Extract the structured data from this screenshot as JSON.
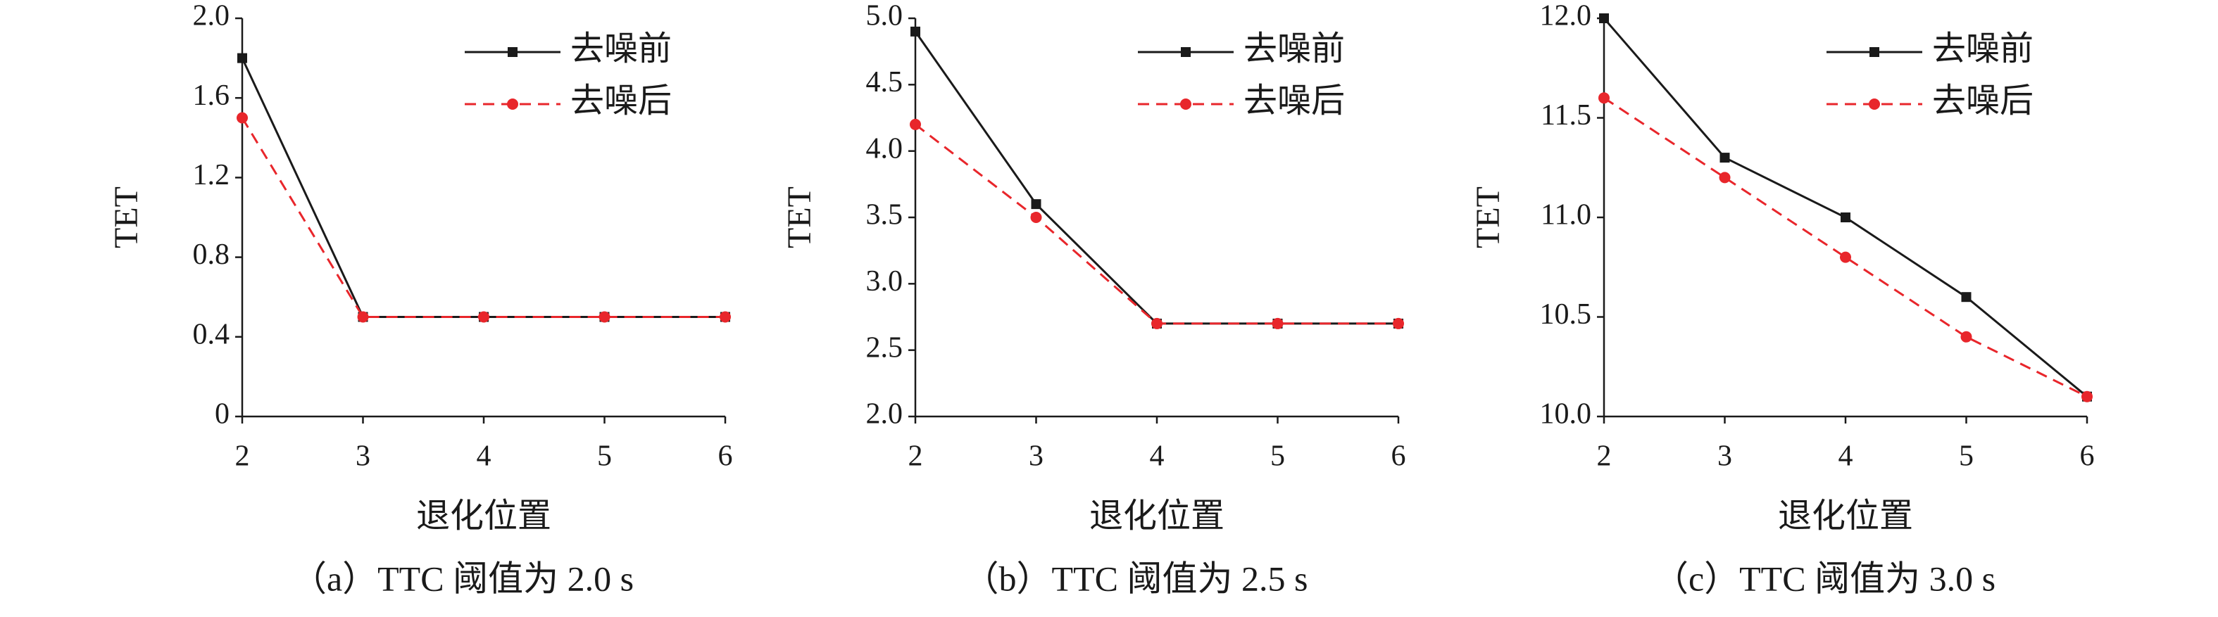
{
  "chart_data": [
    {
      "type": "line",
      "caption": "（a）TTC 阈值为 2.0 s",
      "xlabel": "退化位置",
      "ylabel": "TET",
      "x": [
        2,
        3,
        4,
        5,
        6
      ],
      "xlim": [
        2,
        6
      ],
      "xticks": [
        2,
        3,
        4,
        5,
        6
      ],
      "ylim": [
        0,
        2
      ],
      "yticks": [
        0,
        0.4,
        0.8,
        1.2,
        1.6,
        {
          "value": 2,
          "label": "2.0"
        }
      ],
      "series": [
        {
          "name": "去噪前",
          "color": "#1a1a1a",
          "values": [
            1.8,
            0.5,
            0.5,
            0.5,
            0.5
          ]
        },
        {
          "name": "去噪后",
          "color": "#e8262b",
          "values": [
            1.5,
            0.5,
            0.5,
            0.5,
            0.5
          ]
        }
      ]
    },
    {
      "type": "line",
      "caption": "（b）TTC 阈值为 2.5 s",
      "xlabel": "退化位置",
      "ylabel": "TET",
      "x": [
        2,
        3,
        4,
        5,
        6
      ],
      "xlim": [
        2,
        6
      ],
      "xticks": [
        2,
        3,
        4,
        5,
        6
      ],
      "ylim": [
        2,
        5
      ],
      "yticks": [
        {
          "value": 2,
          "label": "2.0"
        },
        2.5,
        {
          "value": 3,
          "label": "3.0"
        },
        3.5,
        {
          "value": 4,
          "label": "4.0"
        },
        4.5,
        {
          "value": 5,
          "label": "5.0"
        }
      ],
      "series": [
        {
          "name": "去噪前",
          "color": "#1a1a1a",
          "values": [
            4.9,
            3.6,
            2.7,
            2.7,
            2.7
          ]
        },
        {
          "name": "去噪后",
          "color": "#e8262b",
          "values": [
            4.2,
            3.5,
            2.7,
            2.7,
            2.7
          ]
        }
      ]
    },
    {
      "type": "line",
      "caption": "（c）TTC 阈值为 3.0 s",
      "xlabel": "退化位置",
      "ylabel": "TET",
      "x": [
        2,
        3,
        4,
        5,
        6
      ],
      "xlim": [
        2,
        6
      ],
      "xticks": [
        2,
        3,
        4,
        5,
        6
      ],
      "ylim": [
        10,
        12
      ],
      "yticks": [
        {
          "value": 10,
          "label": "10.0"
        },
        10.5,
        {
          "value": 11,
          "label": "11.0"
        },
        11.5,
        {
          "value": 12,
          "label": "12.0"
        }
      ],
      "series": [
        {
          "name": "去噪前",
          "color": "#1a1a1a",
          "values": [
            12,
            11.3,
            11,
            10.6,
            10.1
          ]
        },
        {
          "name": "去噪后",
          "color": "#e8262b",
          "values": [
            11.6,
            11.2,
            10.8,
            10.4,
            10.1
          ]
        }
      ]
    }
  ]
}
